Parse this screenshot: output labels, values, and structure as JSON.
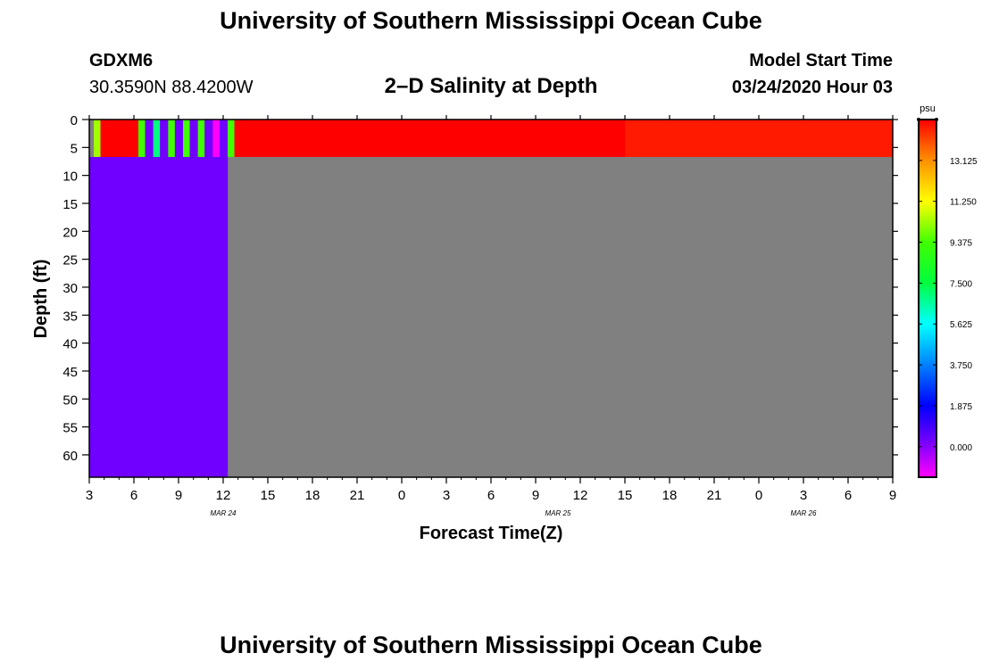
{
  "header": {
    "top_title": "University of Southern Mississippi Ocean Cube",
    "bottom_title": "University of Southern Mississippi Ocean Cube",
    "station": "GDXM6",
    "coords": "30.3590N 88.4200W",
    "subtitle": "2–D Salinity at Depth",
    "start_label": "Model Start Time",
    "start_value": "03/24/2020 Hour 03"
  },
  "chart_data": {
    "type": "heatmap",
    "title": "2–D Salinity at Depth",
    "xlabel": "Forecast Time(Z)",
    "ylabel": "Depth (ft)",
    "x_tick_labels": [
      "3",
      "6",
      "9",
      "12",
      "15",
      "18",
      "21",
      "0",
      "3",
      "6",
      "9",
      "12",
      "15",
      "18",
      "21",
      "0",
      "3",
      "6",
      "9"
    ],
    "x_date_labels": [
      {
        "label": "MAR 24",
        "hour": 12
      },
      {
        "label": "MAR 25",
        "hour": 34.5
      },
      {
        "label": "MAR 26",
        "hour": 51
      }
    ],
    "x_range_hours": [
      3,
      57
    ],
    "y_tick_labels": [
      "0",
      "5",
      "10",
      "15",
      "20",
      "25",
      "30",
      "35",
      "40",
      "45",
      "50",
      "55",
      "60"
    ],
    "y_range_ft": [
      0,
      64
    ],
    "colorbar": {
      "unit": "psu",
      "tick_labels": [
        "0.000",
        "1.875",
        "3.750",
        "5.625",
        "7.500",
        "9.375",
        "11.250",
        "13.125"
      ],
      "range": [
        -1.4,
        15
      ],
      "stops": [
        {
          "value": -1.4,
          "color": "#ff00ff"
        },
        {
          "value": 0.3,
          "color": "#7000ff"
        },
        {
          "value": 1.875,
          "color": "#0000ff"
        },
        {
          "value": 3.75,
          "color": "#0080ff"
        },
        {
          "value": 5.625,
          "color": "#00ffff"
        },
        {
          "value": 7.5,
          "color": "#00ff40"
        },
        {
          "value": 9.375,
          "color": "#40ff00"
        },
        {
          "value": 11.25,
          "color": "#ffff00"
        },
        {
          "value": 13.125,
          "color": "#ff9000"
        },
        {
          "value": 15,
          "color": "#ff0000"
        }
      ]
    },
    "land_color": "#808080",
    "cells": [
      {
        "t0": 3,
        "t1": 3.3,
        "d0": 0,
        "d1": 6.7,
        "color": "#808080"
      },
      {
        "t0": 3.3,
        "t1": 3.75,
        "d0": 0,
        "d1": 6.7,
        "color": "#a0ff00"
      },
      {
        "t0": 3.75,
        "t1": 6.3,
        "d0": 0,
        "d1": 6.7,
        "color": "#ff0000"
      },
      {
        "t0": 6.3,
        "t1": 6.75,
        "d0": 0,
        "d1": 6.7,
        "color": "#40ff00"
      },
      {
        "t0": 6.75,
        "t1": 7.3,
        "d0": 0,
        "d1": 6.7,
        "color": "#7000ff"
      },
      {
        "t0": 7.3,
        "t1": 7.75,
        "d0": 0,
        "d1": 6.7,
        "color": "#00ff80"
      },
      {
        "t0": 7.75,
        "t1": 8.3,
        "d0": 0,
        "d1": 6.7,
        "color": "#7000ff"
      },
      {
        "t0": 8.3,
        "t1": 8.75,
        "d0": 0,
        "d1": 6.7,
        "color": "#40ff00"
      },
      {
        "t0": 8.75,
        "t1": 9.3,
        "d0": 0,
        "d1": 6.7,
        "color": "#7000ff"
      },
      {
        "t0": 9.3,
        "t1": 9.75,
        "d0": 0,
        "d1": 6.7,
        "color": "#40ff00"
      },
      {
        "t0": 9.75,
        "t1": 10.3,
        "d0": 0,
        "d1": 6.7,
        "color": "#7000ff"
      },
      {
        "t0": 10.3,
        "t1": 10.75,
        "d0": 0,
        "d1": 6.7,
        "color": "#40ff00"
      },
      {
        "t0": 10.75,
        "t1": 11.3,
        "d0": 0,
        "d1": 6.7,
        "color": "#7000ff"
      },
      {
        "t0": 11.3,
        "t1": 11.75,
        "d0": 0,
        "d1": 6.7,
        "color": "#ff00ff"
      },
      {
        "t0": 11.75,
        "t1": 12.3,
        "d0": 0,
        "d1": 6.7,
        "color": "#7000ff"
      },
      {
        "t0": 12.3,
        "t1": 12.75,
        "d0": 0,
        "d1": 6.7,
        "color": "#40ff00"
      },
      {
        "t0": 12.75,
        "t1": 39,
        "d0": 0,
        "d1": 6.7,
        "color": "#ff0000"
      },
      {
        "t0": 39,
        "t1": 57,
        "d0": 0,
        "d1": 6.7,
        "color": "#ff1a00"
      },
      {
        "t0": 3,
        "t1": 12.3,
        "d0": 6.7,
        "d1": 64,
        "color": "#7000ff"
      }
    ]
  }
}
